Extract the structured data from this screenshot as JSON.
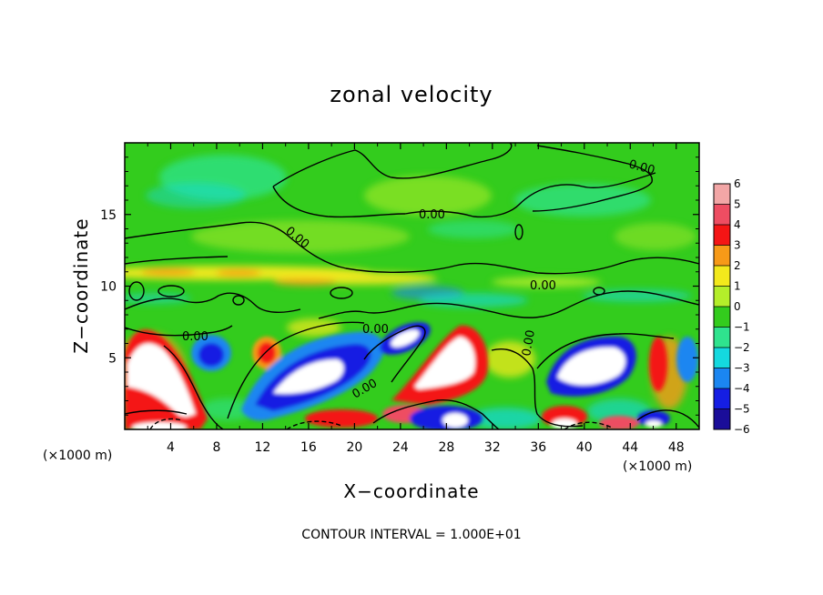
{
  "chart_data": {
    "type": "heatmap",
    "title": "zonal velocity",
    "xlabel": "X−coordinate",
    "ylabel": "Z−coordinate",
    "x_unit_left": "(×1000 m)",
    "x_unit_right": "(×1000 m)",
    "xlim": [
      0,
      50
    ],
    "ylim": [
      0,
      20
    ],
    "x_ticks": [
      {
        "value": 4,
        "label": "4"
      },
      {
        "value": 8,
        "label": "8"
      },
      {
        "value": 12,
        "label": "12"
      },
      {
        "value": 16,
        "label": "16"
      },
      {
        "value": 20,
        "label": "20"
      },
      {
        "value": 24,
        "label": "24"
      },
      {
        "value": 28,
        "label": "28"
      },
      {
        "value": 32,
        "label": "32"
      },
      {
        "value": 36,
        "label": "36"
      },
      {
        "value": 40,
        "label": "40"
      },
      {
        "value": 44,
        "label": "44"
      },
      {
        "value": 48,
        "label": "48"
      }
    ],
    "y_ticks": [
      {
        "value": 5,
        "label": "5"
      },
      {
        "value": 10,
        "label": "10"
      },
      {
        "value": 15,
        "label": "15"
      }
    ],
    "colorbar": {
      "range": [
        -6,
        6
      ],
      "levels": [
        {
          "value": 6,
          "label": "6",
          "color": "#f2a6a6"
        },
        {
          "value": 5,
          "label": "5",
          "color": "#ee4d62"
        },
        {
          "value": 4,
          "label": "4",
          "color": "#f41515"
        },
        {
          "value": 3,
          "label": "3",
          "color": "#f79a18"
        },
        {
          "value": 2,
          "label": "2",
          "color": "#f3e91c"
        },
        {
          "value": 1,
          "label": "1",
          "color": "#b4ee2a"
        },
        {
          "value": 0,
          "label": "0",
          "color": "#33cc1d"
        },
        {
          "value": -1,
          "label": "−1",
          "color": "#2fe38e"
        },
        {
          "value": -2,
          "label": "−2",
          "color": "#14d9df"
        },
        {
          "value": -3,
          "label": "−3",
          "color": "#1b86f1"
        },
        {
          "value": -4,
          "label": "−4",
          "color": "#151ee3"
        },
        {
          "value": -5,
          "label": "−5",
          "color": "#1a0d99"
        },
        {
          "value": -6,
          "label": "−6",
          "color": "#7a1593"
        }
      ]
    },
    "contour_labels": [
      "0.00",
      "0.00",
      "0.00",
      "0.00",
      "0.00",
      "0.00",
      "0.00",
      "0.00"
    ],
    "annotation": "CONTOUR INTERVAL = 1.000E+01",
    "features": [
      {
        "kind": "positive-max",
        "x": 2.5,
        "y": 4.0,
        "value": 7
      },
      {
        "kind": "negative-min",
        "x": 7.2,
        "y": 5.3,
        "value": -5
      },
      {
        "kind": "positive",
        "x": 12.3,
        "y": 5.8,
        "value": 4
      },
      {
        "kind": "negative-min",
        "x": 17.5,
        "y": 3.8,
        "value": -7
      },
      {
        "kind": "negative-min",
        "x": 25.0,
        "y": 5.9,
        "value": -7
      },
      {
        "kind": "positive-max",
        "x": 28.8,
        "y": 4.4,
        "value": 7
      },
      {
        "kind": "negative",
        "x": 28.0,
        "y": 1.3,
        "value": -5
      },
      {
        "kind": "negative-min",
        "x": 40.5,
        "y": 4.9,
        "value": -7
      },
      {
        "kind": "positive",
        "x": 45.5,
        "y": 4.8,
        "value": 4
      },
      {
        "kind": "negative",
        "x": 49.0,
        "y": 5.5,
        "value": -3
      },
      {
        "kind": "positive-max",
        "x": 3.0,
        "y": 0.3,
        "value": 7
      },
      {
        "kind": "positive-max",
        "x": 40.0,
        "y": 0.3,
        "value": 7
      },
      {
        "kind": "positive",
        "x": 11.0,
        "y": 10.8,
        "value": 2
      },
      {
        "kind": "positive",
        "x": 24.5,
        "y": 10.4,
        "value": 2
      },
      {
        "kind": "negative",
        "x": 29.0,
        "y": 9.6,
        "value": -3
      },
      {
        "kind": "negative",
        "x": 8.5,
        "y": 18.0,
        "value": -2
      },
      {
        "kind": "negative",
        "x": 40.0,
        "y": 17.5,
        "value": -2
      }
    ]
  }
}
